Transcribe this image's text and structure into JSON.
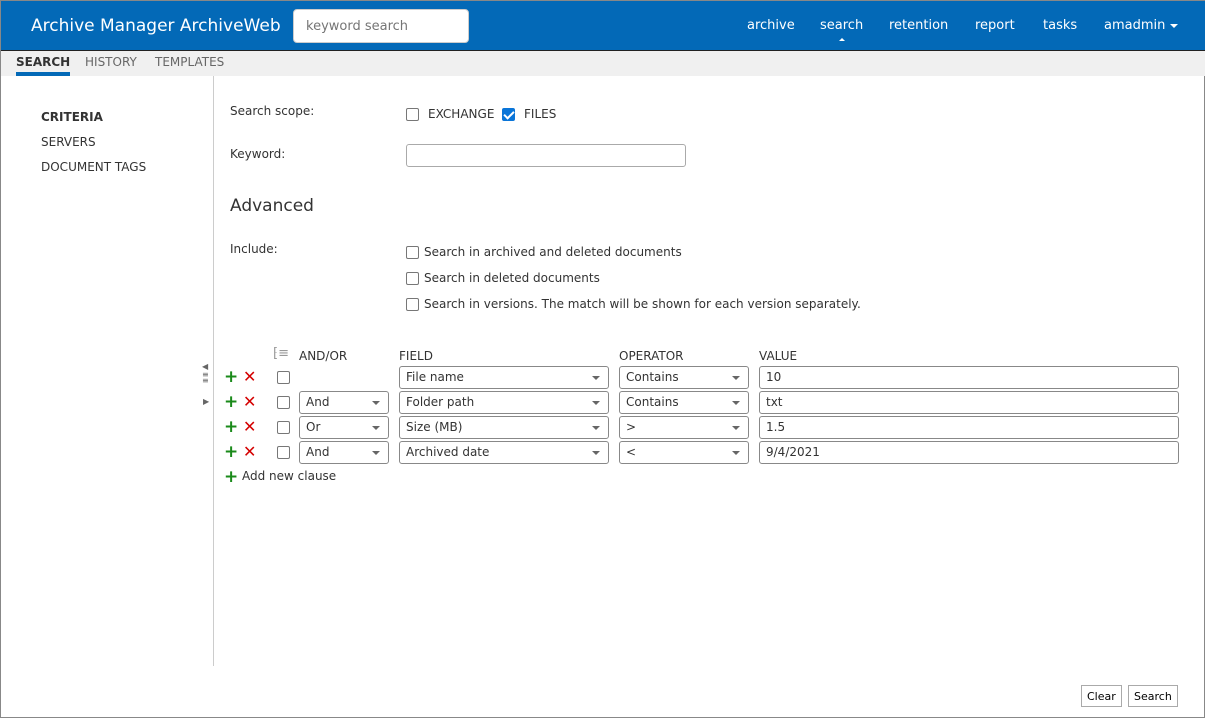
{
  "header": {
    "title": "Archive Manager ArchiveWeb",
    "search_placeholder": "keyword search",
    "nav": [
      "archive",
      "search",
      "retention",
      "report",
      "tasks",
      "amadmin"
    ]
  },
  "subtabs": [
    "SEARCH",
    "HISTORY",
    "TEMPLATES"
  ],
  "sidebar": [
    "CRITERIA",
    "SERVERS",
    "DOCUMENT TAGS"
  ],
  "form": {
    "scope_label": "Search scope:",
    "exchange": "EXCHANGE",
    "files": "FILES",
    "keyword_label": "Keyword:",
    "keyword_value": "",
    "advanced": "Advanced",
    "include_label": "Include:",
    "include": [
      "Search in archived and deleted documents",
      "Search in deleted documents",
      "Search in versions. The match will be shown for each version separately."
    ]
  },
  "clauses": {
    "headers": {
      "andor": "AND/OR",
      "field": "FIELD",
      "operator": "OPERATOR",
      "value": "VALUE"
    },
    "rows": [
      {
        "andor": "",
        "field": "File name",
        "operator": "Contains",
        "value": "10"
      },
      {
        "andor": "And",
        "field": "Folder path",
        "operator": "Contains",
        "value": "txt"
      },
      {
        "andor": "Or",
        "field": "Size (MB)",
        "operator": ">",
        "value": "1.5"
      },
      {
        "andor": "And",
        "field": "Archived date",
        "operator": "<",
        "value": "9/4/2021"
      }
    ],
    "add_label": "Add new clause"
  },
  "buttons": {
    "clear": "Clear",
    "search": "Search"
  }
}
